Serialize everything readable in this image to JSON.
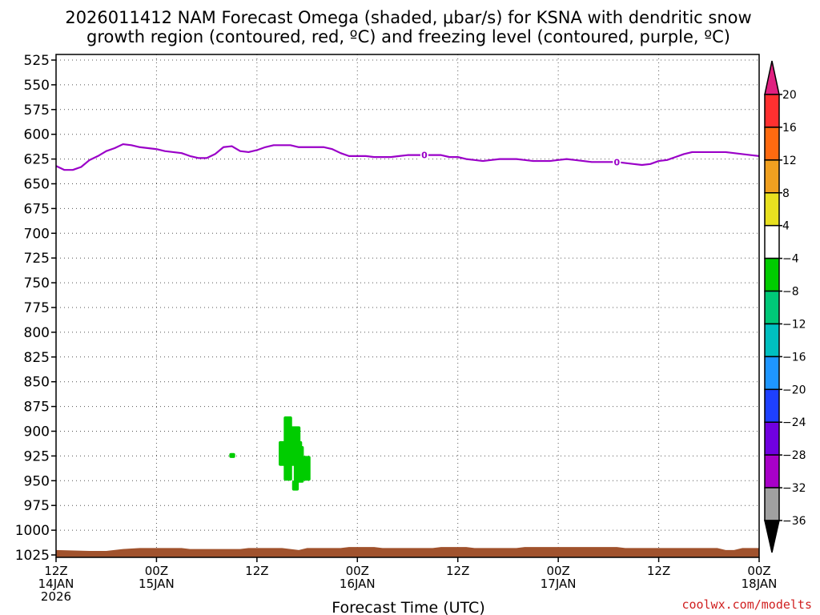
{
  "chart_data": {
    "type": "heatmap",
    "title_line1": "2026011412 NAM Forecast Omega (shaded, μbar/s) for KSNA with dendritic snow",
    "title_line2": "growth region (contoured, red, ºC) and freezing level (contoured, purple, ºC)",
    "xlabel": "Forecast Time (UTC)",
    "credit": "coolwx.com/modelts",
    "grid": true,
    "y_axis": {
      "unit": "mb",
      "range": [
        1025,
        525
      ],
      "ticks": [
        525,
        550,
        575,
        600,
        625,
        650,
        675,
        700,
        725,
        750,
        775,
        800,
        825,
        850,
        875,
        900,
        925,
        950,
        975,
        1000,
        1025
      ]
    },
    "x_axis": {
      "range_hours": [
        0,
        84
      ],
      "ticks": [
        {
          "hour": 0,
          "line1": "12Z",
          "line2": "14JAN",
          "line3": "2026"
        },
        {
          "hour": 12,
          "line1": "00Z",
          "line2": "15JAN",
          "line3": ""
        },
        {
          "hour": 24,
          "line1": "12Z",
          "line2": "",
          "line3": ""
        },
        {
          "hour": 36,
          "line1": "00Z",
          "line2": "16JAN",
          "line3": ""
        },
        {
          "hour": 48,
          "line1": "12Z",
          "line2": "",
          "line3": ""
        },
        {
          "hour": 60,
          "line1": "00Z",
          "line2": "17JAN",
          "line3": ""
        },
        {
          "hour": 72,
          "line1": "12Z",
          "line2": "",
          "line3": ""
        },
        {
          "hour": 84,
          "line1": "00Z",
          "line2": "18JAN",
          "line3": ""
        }
      ]
    },
    "freezing_level": {
      "color": "#9a00c8",
      "label": "0",
      "label_hours": [
        44,
        67
      ],
      "points": [
        [
          0,
          632
        ],
        [
          1,
          636
        ],
        [
          2,
          636
        ],
        [
          3,
          633
        ],
        [
          4,
          626
        ],
        [
          5,
          622
        ],
        [
          6,
          617
        ],
        [
          7,
          614
        ],
        [
          8,
          610
        ],
        [
          9,
          611
        ],
        [
          10,
          613
        ],
        [
          11,
          614
        ],
        [
          12,
          615
        ],
        [
          13,
          617
        ],
        [
          14,
          618
        ],
        [
          15,
          619
        ],
        [
          16,
          622
        ],
        [
          17,
          624
        ],
        [
          18,
          624
        ],
        [
          19,
          620
        ],
        [
          20,
          613
        ],
        [
          21,
          612
        ],
        [
          22,
          617
        ],
        [
          23,
          618
        ],
        [
          24,
          616
        ],
        [
          25,
          613
        ],
        [
          26,
          611
        ],
        [
          27,
          611
        ],
        [
          28,
          611
        ],
        [
          29,
          613
        ],
        [
          30,
          613
        ],
        [
          31,
          613
        ],
        [
          32,
          613
        ],
        [
          33,
          615
        ],
        [
          34,
          619
        ],
        [
          35,
          622
        ],
        [
          36,
          622
        ],
        [
          37,
          622
        ],
        [
          38,
          623
        ],
        [
          39,
          623
        ],
        [
          40,
          623
        ],
        [
          41,
          622
        ],
        [
          42,
          621
        ],
        [
          43,
          621
        ],
        [
          44,
          621
        ],
        [
          45,
          621
        ],
        [
          46,
          621
        ],
        [
          47,
          623
        ],
        [
          48,
          623
        ],
        [
          49,
          625
        ],
        [
          50,
          626
        ],
        [
          51,
          627
        ],
        [
          52,
          626
        ],
        [
          53,
          625
        ],
        [
          54,
          625
        ],
        [
          55,
          625
        ],
        [
          56,
          626
        ],
        [
          57,
          627
        ],
        [
          58,
          627
        ],
        [
          59,
          627
        ],
        [
          60,
          626
        ],
        [
          61,
          625
        ],
        [
          62,
          626
        ],
        [
          63,
          627
        ],
        [
          64,
          628
        ],
        [
          65,
          628
        ],
        [
          66,
          628
        ],
        [
          67,
          628
        ],
        [
          68,
          629
        ],
        [
          69,
          630
        ],
        [
          70,
          631
        ],
        [
          71,
          630
        ],
        [
          72,
          627
        ],
        [
          73,
          626
        ],
        [
          74,
          623
        ],
        [
          75,
          620
        ],
        [
          76,
          618
        ],
        [
          77,
          618
        ],
        [
          78,
          618
        ],
        [
          79,
          618
        ],
        [
          80,
          618
        ],
        [
          81,
          619
        ],
        [
          82,
          620
        ],
        [
          83,
          621
        ],
        [
          84,
          622
        ]
      ]
    },
    "omega_patches": {
      "color": "#00cc00",
      "value_bin": "-8 to -4",
      "cells": [
        {
          "h0": 20.7,
          "h1": 21.4,
          "p0": 922,
          "p1": 927
        },
        {
          "h0": 27.2,
          "h1": 28.2,
          "p0": 885,
          "p1": 950
        },
        {
          "h0": 26.6,
          "h1": 29.4,
          "p0": 910,
          "p1": 935
        },
        {
          "h0": 28.0,
          "h1": 29.2,
          "p0": 895,
          "p1": 915
        },
        {
          "h0": 28.2,
          "h1": 29.0,
          "p0": 950,
          "p1": 960
        },
        {
          "h0": 29.0,
          "h1": 30.4,
          "p0": 925,
          "p1": 950
        },
        {
          "h0": 28.4,
          "h1": 29.6,
          "p0": 915,
          "p1": 952
        }
      ]
    },
    "terrain": {
      "color": "#a0522d",
      "surface_pressure": [
        [
          0,
          1020
        ],
        [
          4,
          1021
        ],
        [
          6,
          1021
        ],
        [
          8,
          1019
        ],
        [
          10,
          1018
        ],
        [
          15,
          1018
        ],
        [
          16,
          1019
        ],
        [
          22,
          1019
        ],
        [
          23,
          1018
        ],
        [
          27,
          1018
        ],
        [
          29,
          1020
        ],
        [
          30,
          1018
        ],
        [
          34,
          1018
        ],
        [
          35,
          1017
        ],
        [
          38,
          1017
        ],
        [
          39,
          1018
        ],
        [
          45,
          1018
        ],
        [
          46,
          1017
        ],
        [
          49,
          1017
        ],
        [
          50,
          1018
        ],
        [
          55,
          1018
        ],
        [
          56,
          1017
        ],
        [
          67,
          1017
        ],
        [
          68,
          1018
        ],
        [
          79,
          1018
        ],
        [
          80,
          1020
        ],
        [
          81,
          1020
        ],
        [
          82,
          1018
        ],
        [
          84,
          1018
        ]
      ]
    },
    "colorbar": {
      "labels": [
        "20",
        "16",
        "12",
        "8",
        "4",
        "−4",
        "−8",
        "−12",
        "−16",
        "−20",
        "−24",
        "−28",
        "−32",
        "−36"
      ],
      "colors": [
        "#e02080",
        "#ff3030",
        "#ff6a10",
        "#f0a020",
        "#e8e020",
        "#ffffff",
        "#00cc00",
        "#00c878",
        "#00c0c0",
        "#1e96ff",
        "#1e40ff",
        "#7000e0",
        "#a800c8",
        "#a0a0a0",
        "#000000"
      ]
    }
  }
}
